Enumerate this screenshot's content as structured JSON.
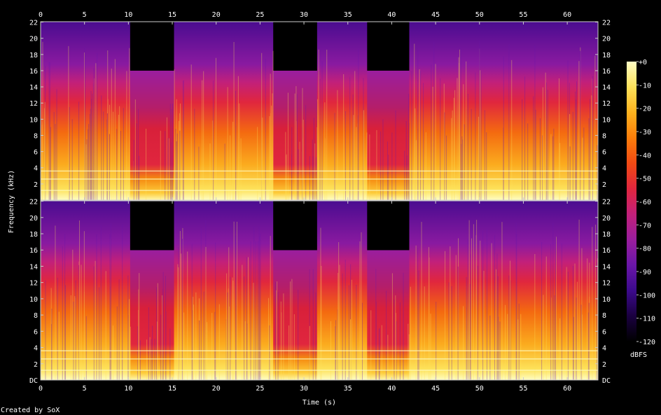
{
  "chart_data": {
    "type": "heatmap",
    "title": "",
    "xlabel": "Time (s)",
    "ylabel": "Frequency (kHz)",
    "credit": "Created by SoX",
    "colorbar_label": "dBFS",
    "x_ticks": [
      "0",
      "5",
      "10",
      "15",
      "20",
      "25",
      "30",
      "35",
      "40",
      "45",
      "50",
      "55",
      "60"
    ],
    "x_tick_values": [
      0,
      5,
      10,
      15,
      20,
      25,
      30,
      35,
      40,
      45,
      50,
      55,
      60
    ],
    "xlim": [
      0,
      63.5
    ],
    "ylim_khz": [
      0,
      22.05
    ],
    "y_ticks_top": [
      "22",
      "20",
      "18",
      "16",
      "14",
      "12",
      "10",
      "8",
      "6",
      "4",
      "2"
    ],
    "y_ticks_bottom": [
      "22",
      "20",
      "18",
      "16",
      "14",
      "12",
      "10",
      "8",
      "6",
      "4",
      "2",
      "DC"
    ],
    "y_tick_values_top": [
      22,
      20,
      18,
      16,
      14,
      12,
      10,
      8,
      6,
      4,
      2
    ],
    "y_tick_values_bottom": [
      22,
      20,
      18,
      16,
      14,
      12,
      10,
      8,
      6,
      4,
      2,
      0
    ],
    "colorbar_ticks": [
      "+0",
      "-10",
      "-20",
      "-30",
      "-40",
      "-50",
      "-60",
      "-70",
      "-80",
      "-90",
      "-100",
      "-110",
      "-120"
    ],
    "colorbar_range_dbfs": [
      -120,
      0
    ],
    "channels": 2,
    "segments": [
      {
        "t0": 0,
        "t1": 10.2,
        "cutoff_khz": 22,
        "kind": "music"
      },
      {
        "t0": 10.2,
        "t1": 15.2,
        "cutoff_khz": 16,
        "kind": "lowpass"
      },
      {
        "t0": 15.2,
        "t1": 26.5,
        "cutoff_khz": 22,
        "kind": "music"
      },
      {
        "t0": 26.5,
        "t1": 31.5,
        "cutoff_khz": 16,
        "kind": "lowpass"
      },
      {
        "t0": 31.5,
        "t1": 37.2,
        "cutoff_khz": 22,
        "kind": "music"
      },
      {
        "t0": 37.2,
        "t1": 42.0,
        "cutoff_khz": 16,
        "kind": "lowpass"
      },
      {
        "t0": 42.0,
        "t1": 63.5,
        "cutoff_khz": 22,
        "kind": "music"
      }
    ],
    "colormap": [
      "#000000",
      "#1a0040",
      "#3c0a8c",
      "#6a16a8",
      "#9a1e9e",
      "#c2207a",
      "#e0263e",
      "#f24a14",
      "#fb7d0a",
      "#fdb21e",
      "#fde25a",
      "#fffdc4"
    ]
  }
}
